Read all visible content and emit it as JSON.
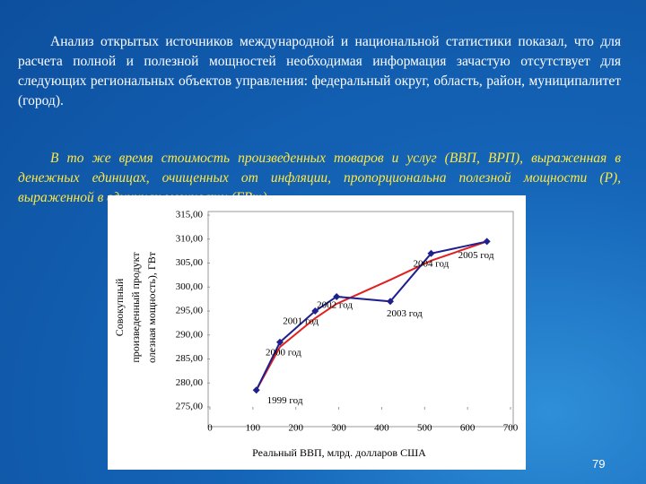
{
  "paragraphs": [
    "Анализ открытых источников международной и национальной статистики показал, что для расчета полной и полезной мощностей необходимая информация зачастую отсутствует для следующих региональных объектов управления: федеральный округ, область, район, муниципалитет (город).",
    "В то же время стоимость произведенных товаров и услуг (ВВП, ВРП), выраженная в денежных единицах, очищенных от инфляции, пропорциональна полезной мощности (Р), выраженной в единицах мощности (ГВт)."
  ],
  "page_number": "79",
  "chart_data": {
    "type": "line",
    "x": [
      108,
      163,
      245,
      295,
      420,
      515,
      645
    ],
    "point_labels": [
      "1999 год",
      "2000 год",
      "2001 год",
      "2002 год",
      "2003 год",
      "2004 год",
      "2005 год"
    ],
    "series": [
      {
        "color": "#1f1f8f",
        "marker": "diamond",
        "values": [
          278.5,
          288.5,
          295,
          298,
          297,
          307,
          309.5
        ]
      },
      {
        "color": "#e02020",
        "values": [
          278.5,
          287.5,
          293.5,
          296.5,
          301.5,
          305.5,
          309.5
        ]
      }
    ],
    "xlim": [
      0,
      700
    ],
    "xticks": [
      0,
      100,
      200,
      300,
      400,
      500,
      600,
      700
    ],
    "ylim": [
      275,
      315
    ],
    "yticks": [
      {
        "value": 275,
        "label": "275,00"
      },
      {
        "value": 280,
        "label": "280,00"
      },
      {
        "value": 285,
        "label": "285,00"
      },
      {
        "value": 290,
        "label": "290,00"
      },
      {
        "value": 295,
        "label": "295,00"
      },
      {
        "value": 300,
        "label": "300,00"
      },
      {
        "value": 305,
        "label": "305,00"
      },
      {
        "value": 310,
        "label": "310,00"
      },
      {
        "value": 315,
        "label": "315,00"
      }
    ],
    "xlabel": "Реальный ВВП, млрд. долларов США",
    "ylabel": [
      "Совокупный",
      "произведенный продукт",
      "олезная мощность), ГВт"
    ]
  }
}
